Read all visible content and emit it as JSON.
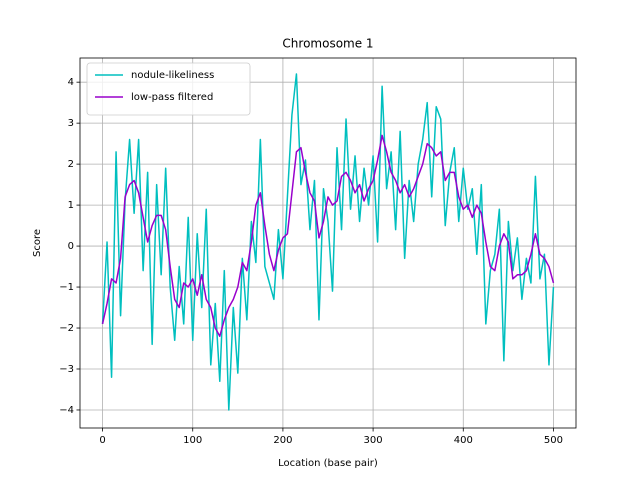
{
  "chart_data": {
    "type": "line",
    "title": "Chromosome 1",
    "xlabel": "Location (base pair)",
    "ylabel": "Score",
    "x": [
      0,
      5,
      10,
      15,
      20,
      25,
      30,
      35,
      40,
      45,
      50,
      55,
      60,
      65,
      70,
      75,
      80,
      85,
      90,
      95,
      100,
      105,
      110,
      115,
      120,
      125,
      130,
      135,
      140,
      145,
      150,
      155,
      160,
      165,
      170,
      175,
      180,
      185,
      190,
      195,
      200,
      205,
      210,
      215,
      220,
      225,
      230,
      235,
      240,
      245,
      250,
      255,
      260,
      265,
      270,
      275,
      280,
      285,
      290,
      295,
      300,
      305,
      310,
      315,
      320,
      325,
      330,
      335,
      340,
      345,
      350,
      355,
      360,
      365,
      370,
      375,
      380,
      385,
      390,
      395,
      400,
      405,
      410,
      415,
      420,
      425,
      430,
      435,
      440,
      445,
      450,
      455,
      460,
      465,
      470,
      475,
      480,
      485,
      490,
      495,
      500
    ],
    "series": [
      {
        "name": "nodule-likeliness",
        "color": "#00bfbf",
        "values": [
          -1.9,
          0.1,
          -3.2,
          2.3,
          -1.7,
          1.1,
          2.6,
          0.8,
          2.6,
          -0.6,
          1.8,
          -2.4,
          1.5,
          -0.7,
          1.9,
          -1.0,
          -2.3,
          -0.5,
          -1.9,
          0.7,
          -2.3,
          0.3,
          -1.5,
          0.9,
          -2.9,
          -1.4,
          -3.3,
          -0.6,
          -4.0,
          -1.5,
          -3.1,
          -0.3,
          -1.8,
          0.6,
          -0.4,
          2.6,
          -0.5,
          -0.9,
          -1.3,
          0.4,
          -0.8,
          1.2,
          3.2,
          4.2,
          1.5,
          2.1,
          0.4,
          1.6,
          -1.8,
          1.4,
          0.6,
          -1.1,
          2.4,
          0.4,
          3.1,
          0.9,
          2.2,
          0.6,
          1.9,
          1.0,
          2.2,
          0.1,
          3.9,
          1.4,
          2.3,
          0.4,
          2.8,
          -0.3,
          1.6,
          0.6,
          2.0,
          2.6,
          3.5,
          1.2,
          3.4,
          3.1,
          0.5,
          1.8,
          2.4,
          0.6,
          1.9,
          0.9,
          1.4,
          -0.2,
          1.5,
          -1.9,
          -0.6,
          -0.2,
          0.9,
          -2.8,
          0.6,
          -0.6,
          0.2,
          -1.3,
          -0.3,
          -0.9,
          1.7,
          -0.8,
          -0.2,
          -2.9,
          -1.0
        ]
      },
      {
        "name": "low-pass filtered",
        "color": "#9900cc",
        "values": [
          -1.9,
          -1.4,
          -0.8,
          -0.9,
          -0.3,
          1.2,
          1.5,
          1.6,
          1.3,
          0.7,
          0.1,
          0.5,
          0.75,
          0.75,
          0.4,
          -0.5,
          -1.3,
          -1.5,
          -0.9,
          -1.0,
          -0.8,
          -1.2,
          -0.7,
          -1.3,
          -1.5,
          -2.0,
          -2.2,
          -1.8,
          -1.5,
          -1.3,
          -1.0,
          -0.4,
          -0.6,
          0.1,
          1.0,
          1.3,
          0.5,
          -0.2,
          -0.6,
          -0.1,
          0.2,
          0.3,
          1.3,
          2.3,
          2.4,
          1.8,
          1.3,
          1.1,
          0.2,
          0.6,
          1.2,
          1.0,
          1.1,
          1.7,
          1.8,
          1.6,
          1.3,
          1.5,
          1.1,
          1.4,
          1.6,
          2.1,
          2.7,
          2.3,
          1.8,
          1.6,
          1.3,
          1.5,
          1.2,
          1.4,
          1.7,
          2.0,
          2.5,
          2.4,
          2.2,
          2.3,
          1.6,
          1.8,
          1.8,
          1.2,
          0.9,
          1.0,
          0.7,
          1.0,
          0.8,
          0.1,
          -0.5,
          -0.6,
          0.0,
          0.3,
          0.1,
          -0.8,
          -0.7,
          -0.7,
          -0.6,
          -0.2,
          0.3,
          -0.2,
          -0.3,
          -0.5,
          -0.9
        ]
      }
    ],
    "xlim": [
      -25,
      525
    ],
    "ylim": [
      -4.44,
      4.59
    ],
    "xticks": [
      0,
      100,
      200,
      300,
      400,
      500
    ],
    "yticks": [
      {
        "value": -4,
        "label": "−4"
      },
      {
        "value": -3,
        "label": "−3"
      },
      {
        "value": -2,
        "label": "−2"
      },
      {
        "value": -1,
        "label": "−1"
      },
      0,
      1,
      2,
      3,
      4
    ],
    "grid": true,
    "legend": "upper left"
  }
}
